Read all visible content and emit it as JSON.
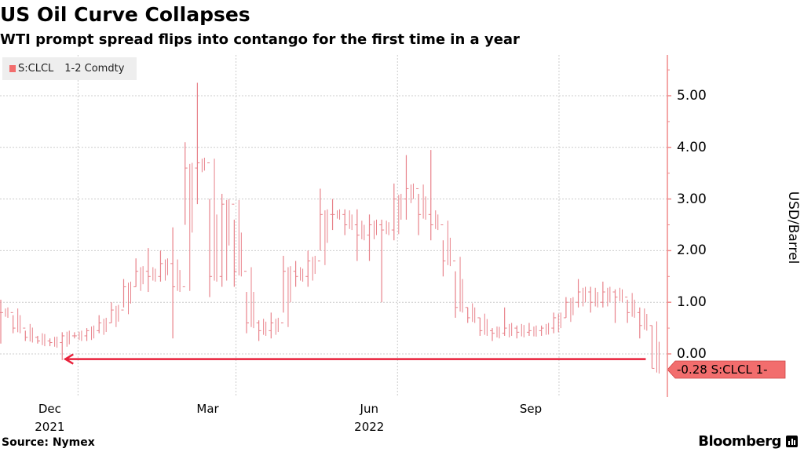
{
  "title": "US Oil Curve Collapses",
  "subtitle": "WTI prompt spread flips into contango for the first time in a year",
  "legend": {
    "ticker": "S:CLCL",
    "name": "1-2 Comdty"
  },
  "source": "Source: Nymex",
  "brand": "Bloomberg",
  "colors": {
    "series": "#e8828a",
    "accent_line": "#e8203a",
    "label_bg": "#f26d6d",
    "axis": "#f08a8a"
  },
  "chart_data": {
    "type": "ohlc-bar",
    "title": "US Oil Curve Collapses",
    "subtitle": "WTI prompt spread flips into contango for the first time in a year",
    "ylabel": "USD/Barrel",
    "ylim": [
      -0.85,
      5.7
    ],
    "yticks": [
      0,
      1,
      2,
      3,
      4,
      5
    ],
    "ytick_labels": [
      "0.00",
      "1.00",
      "2.00",
      "3.00",
      "4.00",
      "5.00"
    ],
    "y_axis_side": "right",
    "grid": true,
    "legend_placement": "top-left",
    "xlim": [
      "2021-10-18",
      "2022-11-04"
    ],
    "xticks": [
      {
        "date": "2021-12-01",
        "label": "Dec",
        "sublabel": "2021"
      },
      {
        "date": "2022-03-01",
        "label": "Mar",
        "sublabel": ""
      },
      {
        "date": "2022-06-01",
        "label": "Jun",
        "sublabel": "2022"
      },
      {
        "date": "2022-09-01",
        "label": "Sep",
        "sublabel": ""
      }
    ],
    "last_value_label": "-0.28 S:CLCL  1-",
    "annotation_arrow": {
      "from_date": "2022-10-24",
      "to_date": "2021-11-22",
      "y": -0.1
    },
    "bar_fields": [
      "week",
      "high",
      "low",
      "close"
    ],
    "bars": [
      [
        "2021-10-18",
        1.05,
        0.2,
        0.8
      ],
      [
        "2021-10-25",
        0.75,
        0.4,
        0.5
      ],
      [
        "2021-11-01",
        0.45,
        0.25,
        0.32
      ],
      [
        "2021-11-08",
        0.35,
        0.2,
        0.25
      ],
      [
        "2021-11-15",
        0.3,
        0.15,
        0.22
      ],
      [
        "2021-11-22",
        0.42,
        -0.12,
        0.35
      ],
      [
        "2021-11-29",
        0.42,
        0.3,
        0.35
      ],
      [
        "2021-12-06",
        0.5,
        0.25,
        0.45
      ],
      [
        "2021-12-13",
        0.75,
        0.4,
        0.6
      ],
      [
        "2021-12-20",
        1.0,
        0.6,
        0.85
      ],
      [
        "2021-12-27",
        1.45,
        0.9,
        1.3
      ],
      [
        "2022-01-03",
        1.85,
        1.3,
        1.6
      ],
      [
        "2022-01-10",
        2.05,
        1.2,
        1.5
      ],
      [
        "2022-01-17",
        2.0,
        1.4,
        1.75
      ],
      [
        "2022-01-24",
        2.45,
        0.3,
        1.3
      ],
      [
        "2022-01-31",
        4.1,
        2.5,
        3.6
      ],
      [
        "2022-02-07",
        5.25,
        2.9,
        3.7
      ],
      [
        "2022-02-14",
        3.0,
        1.1,
        1.5
      ],
      [
        "2022-02-21",
        3.1,
        1.3,
        2.9
      ],
      [
        "2022-02-28",
        2.6,
        1.3,
        1.6
      ],
      [
        "2022-03-07",
        1.2,
        0.4,
        0.6
      ],
      [
        "2022-03-14",
        0.65,
        0.25,
        0.45
      ],
      [
        "2022-03-21",
        0.8,
        0.3,
        0.6
      ],
      [
        "2022-03-28",
        1.9,
        0.8,
        1.6
      ],
      [
        "2022-04-04",
        1.8,
        1.3,
        1.5
      ],
      [
        "2022-04-11",
        2.0,
        1.3,
        1.8
      ],
      [
        "2022-04-18",
        3.2,
        2.0,
        2.7
      ],
      [
        "2022-04-25",
        3.0,
        2.4,
        2.7
      ],
      [
        "2022-05-02",
        2.8,
        2.3,
        2.5
      ],
      [
        "2022-05-09",
        2.8,
        1.8,
        2.3
      ],
      [
        "2022-05-16",
        2.7,
        1.8,
        2.5
      ],
      [
        "2022-05-23",
        2.6,
        1.0,
        2.4
      ],
      [
        "2022-05-30",
        3.3,
        2.2,
        3.0
      ],
      [
        "2022-06-06",
        3.85,
        2.6,
        3.2
      ],
      [
        "2022-06-13",
        3.1,
        2.3,
        2.7
      ],
      [
        "2022-06-20",
        3.95,
        2.2,
        2.5
      ],
      [
        "2022-06-27",
        2.2,
        1.5,
        1.8
      ],
      [
        "2022-07-04",
        1.6,
        0.7,
        0.9
      ],
      [
        "2022-07-11",
        0.9,
        0.6,
        0.7
      ],
      [
        "2022-07-18",
        0.7,
        0.35,
        0.45
      ],
      [
        "2022-07-25",
        0.5,
        0.25,
        0.4
      ],
      [
        "2022-08-01",
        0.9,
        0.35,
        0.5
      ],
      [
        "2022-08-08",
        0.55,
        0.3,
        0.42
      ],
      [
        "2022-08-15",
        0.6,
        0.35,
        0.45
      ],
      [
        "2022-08-22",
        0.55,
        0.35,
        0.5
      ],
      [
        "2022-08-29",
        0.8,
        0.4,
        0.7
      ],
      [
        "2022-09-05",
        1.1,
        0.7,
        1.0
      ],
      [
        "2022-09-12",
        1.45,
        0.9,
        1.2
      ],
      [
        "2022-09-19",
        1.3,
        0.8,
        1.0
      ],
      [
        "2022-09-26",
        1.4,
        0.9,
        1.2
      ],
      [
        "2022-10-03",
        1.25,
        0.6,
        1.1
      ],
      [
        "2022-10-10",
        1.05,
        0.6,
        0.8
      ],
      [
        "2022-10-17",
        0.9,
        0.3,
        0.55
      ],
      [
        "2022-10-24",
        0.55,
        -0.28,
        -0.28
      ]
    ]
  }
}
